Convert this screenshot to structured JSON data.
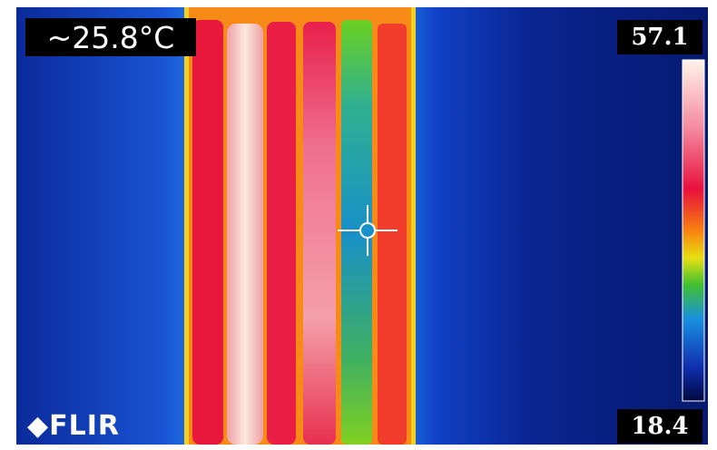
{
  "overlay": {
    "spot_temperature": "~25.8°C",
    "scale_max": "57.1",
    "scale_min": "18.4",
    "logo": "FLIR"
  }
}
